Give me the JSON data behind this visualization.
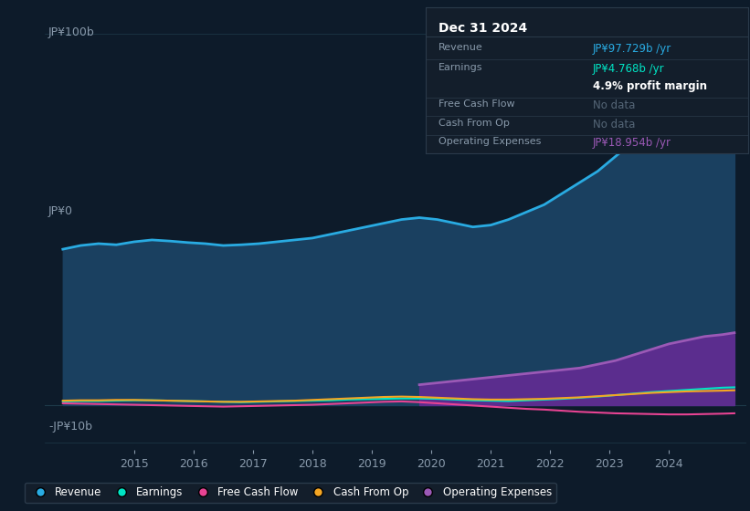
{
  "bg_color": "#0d1b2a",
  "plot_bg_color": "#0d1b2a",
  "title": "Dec 31 2024",
  "ylabel_top": "JP¥100b",
  "ylabel_bottom": "-JP¥10b",
  "ylabel_zero": "JP¥0",
  "xlim": [
    2013.5,
    2025.3
  ],
  "ylim": [
    -12,
    105
  ],
  "years": [
    2013.8,
    2014.1,
    2014.4,
    2014.7,
    2015.0,
    2015.3,
    2015.6,
    2015.9,
    2016.2,
    2016.5,
    2016.8,
    2017.1,
    2017.4,
    2017.7,
    2018.0,
    2018.3,
    2018.6,
    2018.9,
    2019.2,
    2019.5,
    2019.8,
    2020.1,
    2020.4,
    2020.7,
    2021.0,
    2021.3,
    2021.6,
    2021.9,
    2022.2,
    2022.5,
    2022.8,
    2023.1,
    2023.4,
    2023.7,
    2024.0,
    2024.3,
    2024.6,
    2024.9,
    2025.1
  ],
  "revenue": [
    42,
    43,
    43.5,
    43.2,
    44,
    44.5,
    44.2,
    43.8,
    43.5,
    43,
    43.2,
    43.5,
    44,
    44.5,
    45,
    46,
    47,
    48,
    49,
    50,
    50.5,
    50,
    49,
    48,
    48.5,
    50,
    52,
    54,
    57,
    60,
    63,
    67,
    71,
    76,
    81,
    86,
    91,
    95,
    98
  ],
  "earnings": [
    1.0,
    1.1,
    1.1,
    1.2,
    1.3,
    1.3,
    1.2,
    1.1,
    1.0,
    0.9,
    0.8,
    0.9,
    1.0,
    1.1,
    1.2,
    1.3,
    1.5,
    1.6,
    1.7,
    1.8,
    1.8,
    1.7,
    1.5,
    1.3,
    1.2,
    1.1,
    1.3,
    1.5,
    1.7,
    2.0,
    2.3,
    2.7,
    3.1,
    3.5,
    3.8,
    4.1,
    4.4,
    4.7,
    4.8
  ],
  "free_cash_flow": [
    0.5,
    0.4,
    0.3,
    0.2,
    0.1,
    0.0,
    -0.1,
    -0.2,
    -0.3,
    -0.4,
    -0.3,
    -0.2,
    -0.1,
    0.0,
    0.1,
    0.3,
    0.5,
    0.7,
    0.9,
    1.0,
    0.8,
    0.5,
    0.2,
    -0.1,
    -0.4,
    -0.7,
    -1.0,
    -1.2,
    -1.5,
    -1.8,
    -2.0,
    -2.2,
    -2.3,
    -2.4,
    -2.5,
    -2.5,
    -2.4,
    -2.3,
    -2.2
  ],
  "cash_from_op": [
    1.2,
    1.3,
    1.3,
    1.4,
    1.4,
    1.3,
    1.2,
    1.1,
    1.0,
    0.9,
    0.9,
    1.0,
    1.1,
    1.2,
    1.4,
    1.6,
    1.8,
    2.0,
    2.2,
    2.3,
    2.2,
    2.0,
    1.8,
    1.6,
    1.5,
    1.5,
    1.6,
    1.7,
    1.9,
    2.1,
    2.4,
    2.7,
    3.0,
    3.3,
    3.5,
    3.7,
    3.8,
    3.9,
    4.0
  ],
  "op_years": [
    2019.8,
    2020.1,
    2020.4,
    2020.7,
    2021.0,
    2021.3,
    2021.6,
    2021.9,
    2022.2,
    2022.5,
    2022.8,
    2023.1,
    2023.4,
    2023.7,
    2024.0,
    2024.3,
    2024.6,
    2024.9,
    2025.1
  ],
  "op_expenses": [
    5.5,
    6.0,
    6.5,
    7.0,
    7.5,
    8.0,
    8.5,
    9.0,
    9.5,
    10.0,
    11.0,
    12.0,
    13.5,
    15.0,
    16.5,
    17.5,
    18.5,
    19.0,
    19.5
  ],
  "revenue_color": "#29abe2",
  "earnings_color": "#00e5c5",
  "free_cash_flow_color": "#e84393",
  "cash_from_op_color": "#f5a623",
  "op_expenses_color": "#9b59b6",
  "op_expenses_fill_color": "#5b2d8e",
  "revenue_fill_color": "#1a4060",
  "grid_color": "#1e3a4a",
  "text_color": "#8899aa",
  "legend_bg": "#131e2b",
  "legend_border": "#2a3a4a",
  "info_box_bg": "#131e2b",
  "info_box_border": "#2a3a4a",
  "info_title": "Dec 31 2024",
  "info_rows": [
    {
      "label": "Revenue",
      "value": "JP¥97.729b /yr",
      "value_color": "#29abe2",
      "separator": true
    },
    {
      "label": "Earnings",
      "value": "JP¥4.768b /yr",
      "value_color": "#00e5c5",
      "separator": false
    },
    {
      "label": "",
      "value": "4.9% profit margin",
      "value_color": "#ffffff",
      "separator": true
    },
    {
      "label": "Free Cash Flow",
      "value": "No data",
      "value_color": "#556677",
      "separator": true
    },
    {
      "label": "Cash From Op",
      "value": "No data",
      "value_color": "#556677",
      "separator": true
    },
    {
      "label": "Operating Expenses",
      "value": "JP¥18.954b /yr",
      "value_color": "#9b59b6",
      "separator": false
    }
  ],
  "legend_items": [
    "Revenue",
    "Earnings",
    "Free Cash Flow",
    "Cash From Op",
    "Operating Expenses"
  ],
  "legend_colors": [
    "#29abe2",
    "#00e5c5",
    "#e84393",
    "#f5a623",
    "#9b59b6"
  ],
  "xtick_years": [
    2015,
    2016,
    2017,
    2018,
    2019,
    2020,
    2021,
    2022,
    2023,
    2024
  ]
}
